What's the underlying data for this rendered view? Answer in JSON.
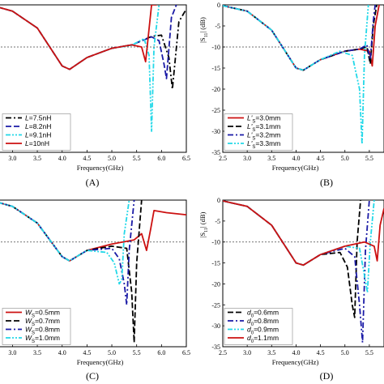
{
  "chart_data": [
    {
      "type": "line",
      "caption": "(A)",
      "xlabel": "Frequency(GHz)",
      "ylabel": "",
      "xlim": [
        2.7,
        6.5
      ],
      "ylim": [
        -35,
        0
      ],
      "x_ticks": [
        "3.0",
        "3.5",
        "4.0",
        "4.5",
        "5.0",
        "5.5",
        "6.0",
        "6.5"
      ],
      "y_ticks": [],
      "reference_line": -10,
      "grid": false,
      "legend": "bottom-left",
      "series": [
        {
          "name": "L=7.5nH",
          "name_italic": "L",
          "name_rest": "=7.5nH",
          "color": "#000000",
          "dash": "dashdot",
          "x": [
            2.7,
            3.0,
            3.5,
            4.0,
            4.15,
            4.5,
            5.0,
            5.4,
            5.8,
            6.0,
            6.15,
            6.22,
            6.35,
            6.5
          ],
          "y": [
            -0.5,
            -1.5,
            -5.5,
            -14.5,
            -15.3,
            -12.5,
            -10.3,
            -9.5,
            -7.5,
            -7.2,
            -12.5,
            -20.0,
            -4.0,
            -1.0
          ]
        },
        {
          "name": "L=8.2nH",
          "name_italic": "L",
          "name_rest": "=8.2nH",
          "color": "#1a1aa6",
          "dash": "dash",
          "x": [
            2.7,
            3.0,
            3.5,
            4.0,
            4.15,
            4.5,
            5.0,
            5.4,
            5.8,
            5.95,
            6.05,
            6.1,
            6.2,
            6.3
          ],
          "y": [
            -0.5,
            -1.5,
            -5.5,
            -14.5,
            -15.3,
            -12.5,
            -10.3,
            -9.5,
            -7.6,
            -8.5,
            -14.0,
            -17.5,
            -3.0,
            0.0
          ]
        },
        {
          "name": "L=9.1nH",
          "name_italic": "L",
          "name_rest": "=9.1nH",
          "color": "#22d8e8",
          "dash": "dashdotdot",
          "x": [
            2.7,
            3.0,
            3.5,
            4.0,
            4.15,
            4.5,
            5.0,
            5.4,
            5.65,
            5.75,
            5.8,
            5.85,
            5.95
          ],
          "y": [
            -0.5,
            -1.5,
            -5.5,
            -14.5,
            -15.3,
            -12.5,
            -10.3,
            -9.6,
            -8.0,
            -12.0,
            -30.0,
            -10.0,
            0.0
          ]
        },
        {
          "name": "L=10nH",
          "name_italic": "L",
          "name_rest": "=10nH",
          "color": "#cc1111",
          "dash": "solid",
          "x": [
            2.7,
            3.0,
            3.5,
            4.0,
            4.15,
            4.5,
            5.0,
            5.4,
            5.6,
            5.68,
            5.72,
            5.8,
            5.9
          ],
          "y": [
            -0.5,
            -1.5,
            -5.5,
            -14.5,
            -15.3,
            -12.5,
            -10.3,
            -9.5,
            -10.0,
            -13.5,
            -9.0,
            0.0,
            0.0
          ]
        }
      ]
    },
    {
      "type": "line",
      "caption": "(B)",
      "xlabel": "Frequency(GHz)",
      "ylabel": "|S11| (dB)",
      "ylabel_main": "|S",
      "ylabel_sub": "11",
      "ylabel_rest": "| (dB)",
      "xlim": [
        2.5,
        5.8
      ],
      "ylim": [
        -35,
        0
      ],
      "x_ticks": [
        "2.5",
        "3.0",
        "3.5",
        "4.0",
        "4.5",
        "5.0",
        "5.5"
      ],
      "y_ticks": [
        "0",
        "-5",
        "-10",
        "-15",
        "-20",
        "-25",
        "-30",
        "-35"
      ],
      "reference_line": -10,
      "grid": false,
      "legend": "bottom-left",
      "series": [
        {
          "name": "L'S=3.0mm",
          "name_italic": "L'",
          "name_sub": "S",
          "name_rest": "=3.0mm",
          "color": "#cc1111",
          "dash": "solid",
          "x": [
            2.5,
            3.0,
            3.5,
            4.0,
            4.15,
            4.5,
            5.0,
            5.3,
            5.5,
            5.56,
            5.62,
            5.7
          ],
          "y": [
            -0.2,
            -1.5,
            -6.0,
            -15.0,
            -15.5,
            -13.0,
            -11.0,
            -10.5,
            -11.0,
            -14.5,
            -5.0,
            0.0
          ]
        },
        {
          "name": "L'S=3.1mm",
          "name_italic": "L'",
          "name_sub": "S",
          "name_rest": "=3.1mm",
          "color": "#000000",
          "dash": "dash",
          "x": [
            2.5,
            3.0,
            3.5,
            4.0,
            4.15,
            4.5,
            5.0,
            5.3,
            5.45,
            5.52,
            5.58,
            5.65
          ],
          "y": [
            -0.2,
            -1.5,
            -6.0,
            -15.0,
            -15.5,
            -13.0,
            -11.0,
            -10.5,
            -10.0,
            -14.0,
            -5.0,
            0.0
          ]
        },
        {
          "name": "L'S=3.2mm",
          "name_italic": "L'",
          "name_sub": "S",
          "name_rest": "=3.2mm",
          "color": "#1a1aa6",
          "dash": "dashdot",
          "x": [
            2.5,
            3.0,
            3.5,
            4.0,
            4.15,
            4.5,
            5.0,
            5.3,
            5.45,
            5.52,
            5.58,
            5.62
          ],
          "y": [
            -0.2,
            -1.5,
            -6.0,
            -15.0,
            -15.5,
            -13.0,
            -11.0,
            -10.5,
            -9.5,
            -13.0,
            -4.0,
            0.0
          ]
        },
        {
          "name": "L'S=3.3mm",
          "name_italic": "L'",
          "name_sub": "S",
          "name_rest": "=3.3mm",
          "color": "#22d8e8",
          "dash": "dashdotdot",
          "x": [
            2.5,
            3.0,
            3.5,
            4.0,
            4.15,
            4.5,
            4.9,
            5.15,
            5.3,
            5.35,
            5.4,
            5.48
          ],
          "y": [
            -0.2,
            -1.5,
            -6.0,
            -15.0,
            -15.5,
            -13.0,
            -11.0,
            -12.0,
            -20.0,
            -33.0,
            -12.0,
            0.0
          ]
        }
      ]
    },
    {
      "type": "line",
      "caption": "(C)",
      "xlabel": "Frequency(GHz)",
      "ylabel": "",
      "xlim": [
        2.7,
        6.5
      ],
      "ylim": [
        -35,
        0
      ],
      "x_ticks": [
        "3.0",
        "3.5",
        "4.0",
        "4.5",
        "5.0",
        "5.5",
        "6.0",
        "6.5"
      ],
      "y_ticks": [],
      "reference_line": -10,
      "grid": false,
      "legend": "bottom-left",
      "series": [
        {
          "name": "WS=0.5mm",
          "name_italic": "W",
          "name_sub": "S",
          "name_rest": "=0.5mm",
          "color": "#cc1111",
          "dash": "solid",
          "x": [
            2.7,
            3.0,
            3.5,
            4.0,
            4.15,
            4.5,
            5.0,
            5.45,
            5.6,
            5.7,
            5.78,
            5.85,
            6.1,
            6.5
          ],
          "y": [
            -0.5,
            -1.5,
            -5.5,
            -13.5,
            -14.5,
            -12.0,
            -10.5,
            -9.5,
            -8.0,
            -12.0,
            -7.0,
            -2.5,
            -3.0,
            -3.5
          ]
        },
        {
          "name": "WS=0.7mm",
          "name_italic": "W",
          "name_sub": "S",
          "name_rest": "=0.7mm",
          "color": "#000000",
          "dash": "dash",
          "x": [
            2.7,
            3.0,
            3.5,
            4.0,
            4.15,
            4.5,
            5.0,
            5.3,
            5.4,
            5.45,
            5.5,
            5.6
          ],
          "y": [
            -0.5,
            -1.5,
            -5.5,
            -13.5,
            -14.5,
            -12.0,
            -11.0,
            -11.5,
            -22.0,
            -34.0,
            -15.0,
            0.0
          ]
        },
        {
          "name": "WS=0.8mm",
          "name_italic": "W",
          "name_sub": "S",
          "name_rest": "=0.8mm",
          "color": "#1a1aa6",
          "dash": "dashdot",
          "x": [
            2.7,
            3.0,
            3.5,
            4.0,
            4.15,
            4.5,
            5.0,
            5.15,
            5.25,
            5.3,
            5.35,
            5.45
          ],
          "y": [
            -0.5,
            -1.5,
            -5.5,
            -13.5,
            -14.5,
            -12.0,
            -11.5,
            -14.0,
            -20.0,
            -25.0,
            -12.0,
            0.0
          ]
        },
        {
          "name": "WS=1.0mm",
          "name_italic": "W",
          "name_sub": "S",
          "name_rest": "=1.0mm",
          "color": "#22d8e8",
          "dash": "dashdotdot",
          "x": [
            2.7,
            3.0,
            3.5,
            4.0,
            4.15,
            4.5,
            4.9,
            5.05,
            5.15,
            5.2,
            5.25,
            5.35
          ],
          "y": [
            -0.5,
            -1.5,
            -5.5,
            -13.5,
            -14.5,
            -12.0,
            -12.5,
            -15.0,
            -20.0,
            -19.0,
            -8.0,
            0.0
          ]
        }
      ]
    },
    {
      "type": "line",
      "caption": "(D)",
      "xlabel": "Frequency(GHz)",
      "ylabel": "|S11| (dB)",
      "ylabel_main": "|S",
      "ylabel_sub": "11",
      "ylabel_rest": "| (dB)",
      "xlim": [
        2.5,
        5.8
      ],
      "ylim": [
        -35,
        0
      ],
      "x_ticks": [
        "2.5",
        "3.0",
        "3.5",
        "4.0",
        "4.5",
        "5.0",
        "5.5"
      ],
      "y_ticks": [
        "0",
        "-5",
        "-10",
        "-15",
        "-20",
        "-25",
        "-30",
        "-35"
      ],
      "reference_line": -10,
      "grid": false,
      "legend": "bottom-left",
      "series": [
        {
          "name": "d0=0.6mm",
          "name_italic": "d",
          "name_sub": "0",
          "name_rest": "=0.6mm",
          "color": "#000000",
          "dash": "dash",
          "x": [
            2.5,
            3.0,
            3.5,
            4.0,
            4.15,
            4.5,
            4.9,
            5.05,
            5.15,
            5.2,
            5.25,
            5.32
          ],
          "y": [
            -0.2,
            -1.5,
            -6.0,
            -15.0,
            -15.5,
            -13.0,
            -12.5,
            -16.0,
            -25.0,
            -28.0,
            -10.0,
            0.0
          ]
        },
        {
          "name": "d0=0.8mm",
          "name_italic": "d",
          "name_sub": "0",
          "name_rest": "=0.8mm",
          "color": "#1a1aa6",
          "dash": "dashdot",
          "x": [
            2.5,
            3.0,
            3.5,
            4.0,
            4.15,
            4.5,
            5.0,
            5.2,
            5.3,
            5.36,
            5.42,
            5.5
          ],
          "y": [
            -0.2,
            -1.5,
            -6.0,
            -15.0,
            -15.5,
            -13.0,
            -11.5,
            -13.5,
            -25.0,
            -34.0,
            -12.0,
            0.0
          ]
        },
        {
          "name": "d0=0.9mm",
          "name_italic": "d",
          "name_sub": "0",
          "name_rest": "=0.9mm",
          "color": "#22d8e8",
          "dash": "dashdotdot",
          "x": [
            2.5,
            3.0,
            3.5,
            4.0,
            4.15,
            4.5,
            5.0,
            5.3,
            5.4,
            5.46,
            5.52,
            5.6
          ],
          "y": [
            -0.2,
            -1.5,
            -6.0,
            -15.0,
            -15.5,
            -13.0,
            -11.0,
            -11.5,
            -18.0,
            -22.0,
            -10.0,
            0.0
          ]
        },
        {
          "name": "d0=1.1mm",
          "name_italic": "d",
          "name_sub": "0",
          "name_rest": "=1.1mm",
          "color": "#cc1111",
          "dash": "solid",
          "x": [
            2.5,
            3.0,
            3.5,
            4.0,
            4.15,
            4.5,
            5.0,
            5.4,
            5.6,
            5.66,
            5.72,
            5.8
          ],
          "y": [
            -0.2,
            -1.5,
            -6.0,
            -15.0,
            -15.5,
            -13.0,
            -11.0,
            -10.0,
            -11.0,
            -14.5,
            -6.0,
            -2.0
          ]
        }
      ]
    }
  ]
}
